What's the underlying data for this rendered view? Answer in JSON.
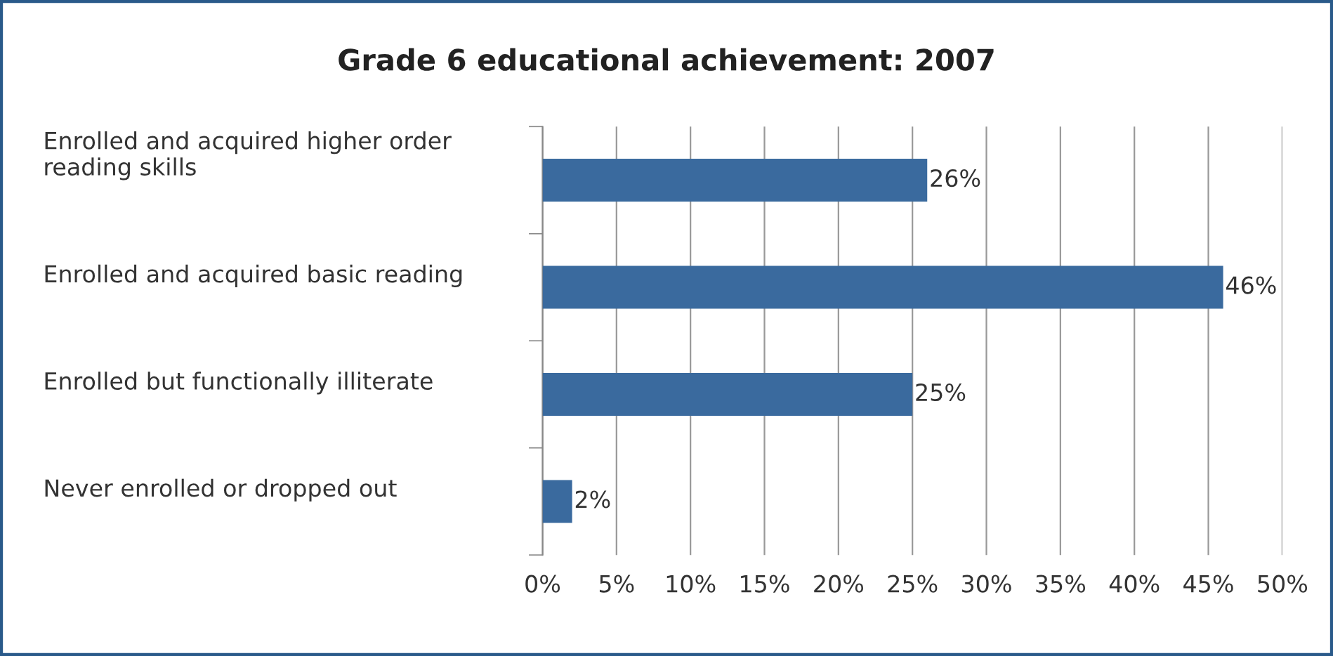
{
  "chart_data": {
    "type": "bar",
    "orientation": "horizontal",
    "title": "Grade 6 educational achievement: 2007",
    "categories": [
      "Enrolled and acquired higher order\nreading skills",
      "Enrolled and acquired basic reading",
      "Enrolled but functionally illiterate",
      "Never enrolled or dropped out"
    ],
    "values": [
      26,
      46,
      25,
      2
    ],
    "value_labels": [
      "26%",
      "46%",
      "25%",
      "2%"
    ],
    "color": "#3a6a9e",
    "xlim": [
      0,
      50
    ],
    "xticks": [
      {
        "value": 0,
        "label": "0%"
      },
      {
        "value": 5,
        "label": "5%"
      },
      {
        "value": 10,
        "label": "10%"
      },
      {
        "value": 15,
        "label": "15%"
      },
      {
        "value": 20,
        "label": "20%"
      },
      {
        "value": 25,
        "label": "25%"
      },
      {
        "value": 30,
        "label": "30%"
      },
      {
        "value": 35,
        "label": "35%"
      },
      {
        "value": 40,
        "label": "40%"
      },
      {
        "value": 45,
        "label": "45%"
      },
      {
        "value": 50,
        "label": "50%"
      }
    ],
    "grid": "x"
  }
}
